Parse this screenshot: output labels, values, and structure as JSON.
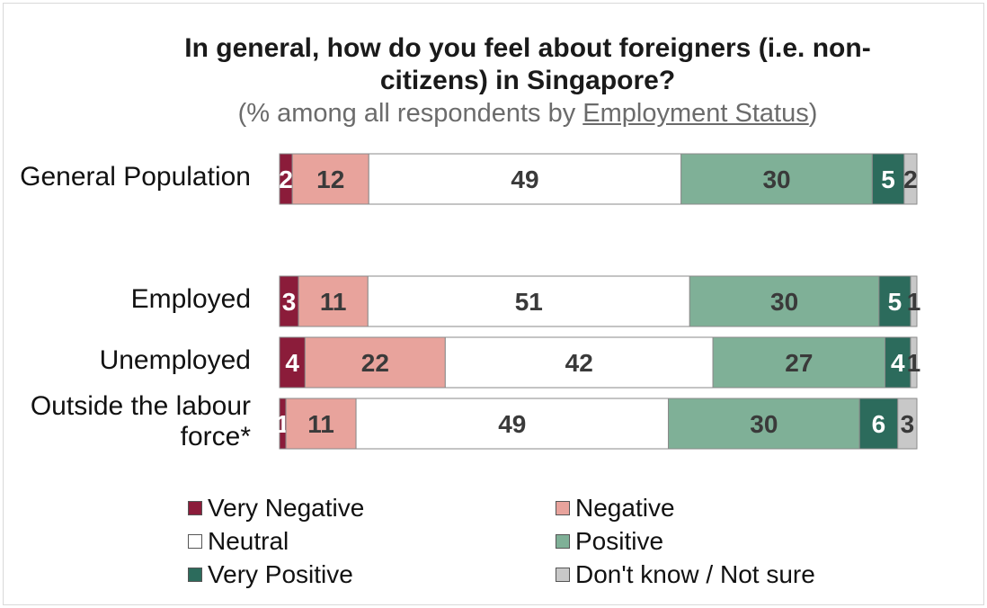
{
  "chart_data": {
    "type": "bar",
    "orientation": "horizontal",
    "stacked": true,
    "title_line1": "In general, how do you feel about foreigners (i.e. non-",
    "title_line2": "citizens) in Singapore?",
    "subtitle_prefix": "(% among all respondents by ",
    "subtitle_link": "Employment Status",
    "subtitle_suffix": ")",
    "categories": [
      "General Population",
      "Employed",
      "Unemployed",
      "Outside the labour force*"
    ],
    "category_lines": [
      [
        "General Population"
      ],
      [
        "Employed"
      ],
      [
        "Unemployed"
      ],
      [
        "Outside the labour",
        "force*"
      ]
    ],
    "series": [
      {
        "name": "Very Negative",
        "color": "#8b1c3a",
        "text_color": "#ffffff",
        "values": [
          2,
          3,
          4,
          1
        ]
      },
      {
        "name": "Negative",
        "color": "#e8a39c",
        "text_color": "#3a3a3a",
        "values": [
          12,
          11,
          22,
          11
        ]
      },
      {
        "name": "Neutral",
        "color": "#ffffff",
        "text_color": "#3a3a3a",
        "values": [
          49,
          51,
          42,
          49
        ]
      },
      {
        "name": "Positive",
        "color": "#7fb097",
        "text_color": "#3a3a3a",
        "values": [
          30,
          30,
          27,
          30
        ]
      },
      {
        "name": "Very Positive",
        "color": "#2c6b5c",
        "text_color": "#ffffff",
        "values": [
          5,
          5,
          4,
          6
        ]
      },
      {
        "name": "Don't know / Not sure",
        "color": "#c8c8c8",
        "text_color": "#3a3a3a",
        "values": [
          2,
          1,
          1,
          3
        ]
      }
    ],
    "xlim": [
      0,
      100
    ],
    "grid": false,
    "legend_position": "bottom"
  }
}
